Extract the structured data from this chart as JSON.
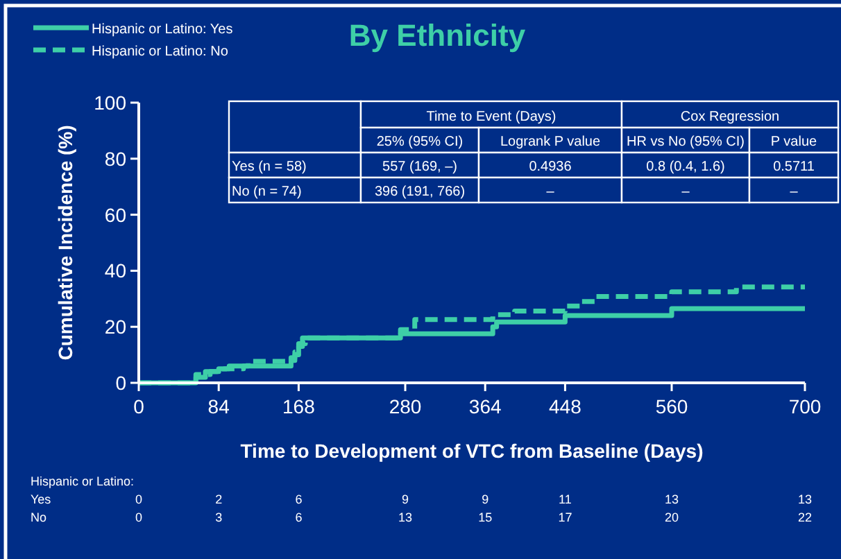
{
  "chart_data": {
    "type": "step",
    "title": "By Ethnicity",
    "xlabel": "Time to Development of VTC from Baseline (Days)",
    "ylabel": "Cumulative Incidence (%)",
    "xlim": [
      0,
      700
    ],
    "xticks": [
      0,
      84,
      168,
      280,
      364,
      448,
      560,
      700
    ],
    "ylim": [
      0,
      100
    ],
    "yticks": [
      0,
      20,
      40,
      60,
      80,
      100
    ],
    "grid": false,
    "legend": "top left",
    "marker": "none",
    "series": [
      {
        "name": "Hispanic or Latino: Yes",
        "color": "#3ecfa7",
        "line_style": "solid",
        "x": [
          0,
          60,
          70,
          84,
          95,
          160,
          164,
          168,
          172,
          275,
          372,
          376,
          448,
          560,
          700
        ],
        "values": [
          0,
          2,
          4,
          5,
          6,
          8,
          10,
          13,
          16,
          17.5,
          20,
          21.7,
          24,
          26.5,
          26.5
        ]
      },
      {
        "name": "Hispanic or Latino: No",
        "color": "#3ecfa7",
        "line_style": "dashed",
        "x": [
          0,
          60,
          75,
          90,
          110,
          115,
          160,
          164,
          168,
          175,
          275,
          290,
          372,
          395,
          448,
          465,
          480,
          560,
          628,
          700
        ],
        "values": [
          0,
          3,
          4,
          5,
          6,
          7.7,
          9,
          11,
          14,
          16,
          19,
          22.6,
          24.3,
          25.6,
          27.4,
          29,
          30.8,
          32.5,
          34.2,
          34.2
        ]
      }
    ],
    "annotations": [
      "Time to Event (Days)",
      "Cox Regression",
      "25% (95% CI)",
      "Logrank P value",
      "HR vs No (95% CI)",
      "P value",
      "Yes (n = 58)",
      "557 (169, –)",
      "0.4936",
      "0.8 (0.4, 1.6)",
      "0.5711",
      "No (n = 74)",
      "396 (191, 766)",
      "–",
      "–",
      "–",
      "Hispanic or Latino:",
      "Yes",
      "0",
      "2",
      "6",
      "9",
      "9",
      "11",
      "13",
      "13",
      "No",
      "0",
      "3",
      "6",
      "13",
      "15",
      "17",
      "20",
      "22"
    ]
  }
}
